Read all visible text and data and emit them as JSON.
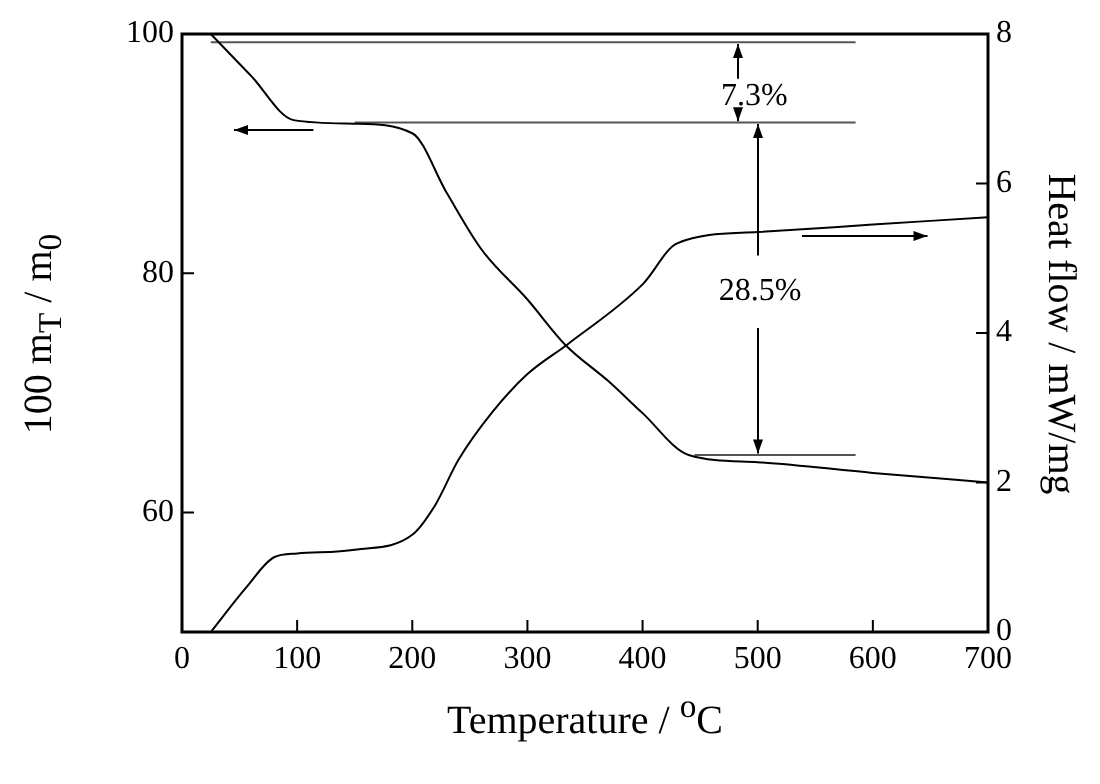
{
  "chart_data": {
    "type": "line",
    "xlabel": "Temperature / $^{o}$C",
    "ylabel": "100 m$_{T}$ / m$_{0}$",
    "y2label": "Heat flow / mW/mg",
    "xlim": [
      0,
      700
    ],
    "xticks": [
      0,
      100,
      200,
      300,
      400,
      500,
      600,
      700
    ],
    "ylim": [
      50,
      100
    ],
    "yticks": [
      60,
      80,
      100
    ],
    "y2lim": [
      0,
      8
    ],
    "y2ticks": [
      0,
      2,
      4,
      6,
      8
    ],
    "series": [
      {
        "color": "#000000",
        "axis": "y",
        "x": [
          25,
          60,
          97,
          150,
          200,
          230,
          260,
          300,
          333,
          370,
          400,
          440,
          500,
          600,
          700
        ],
        "values": [
          100,
          96.5,
          92.8,
          92.5,
          91.7,
          86.7,
          82,
          77.8,
          74,
          71,
          68.3,
          64.8,
          64.2,
          63.3,
          62.5
        ]
      },
      {
        "color": "#000000",
        "axis": "y2",
        "x": [
          25,
          56,
          80,
          100,
          150,
          200,
          220,
          240,
          270,
          300,
          335,
          400,
          430,
          500,
          600,
          700
        ],
        "values": [
          0,
          0.6,
          1.0,
          1.05,
          1.1,
          1.3,
          1.7,
          2.3,
          2.95,
          3.45,
          3.85,
          4.65,
          5.2,
          5.35,
          5.45,
          5.55
        ]
      },
      {
        "color": "#555555",
        "axis": "y",
        "x": [
          25,
          585
        ],
        "values": [
          99.3,
          99.3
        ]
      },
      {
        "color": "#555555",
        "axis": "y",
        "x": [
          150,
          585
        ],
        "values": [
          92.6,
          92.6
        ]
      },
      {
        "color": "#555555",
        "axis": "y",
        "x": [
          445,
          585
        ],
        "values": [
          64.8,
          64.8
        ]
      }
    ],
    "annotations": [
      {
        "text": "7.3%",
        "x": 497,
        "y": 94.8
      },
      {
        "text": "28.5%",
        "x": 502,
        "y": 78.5
      }
    ]
  }
}
